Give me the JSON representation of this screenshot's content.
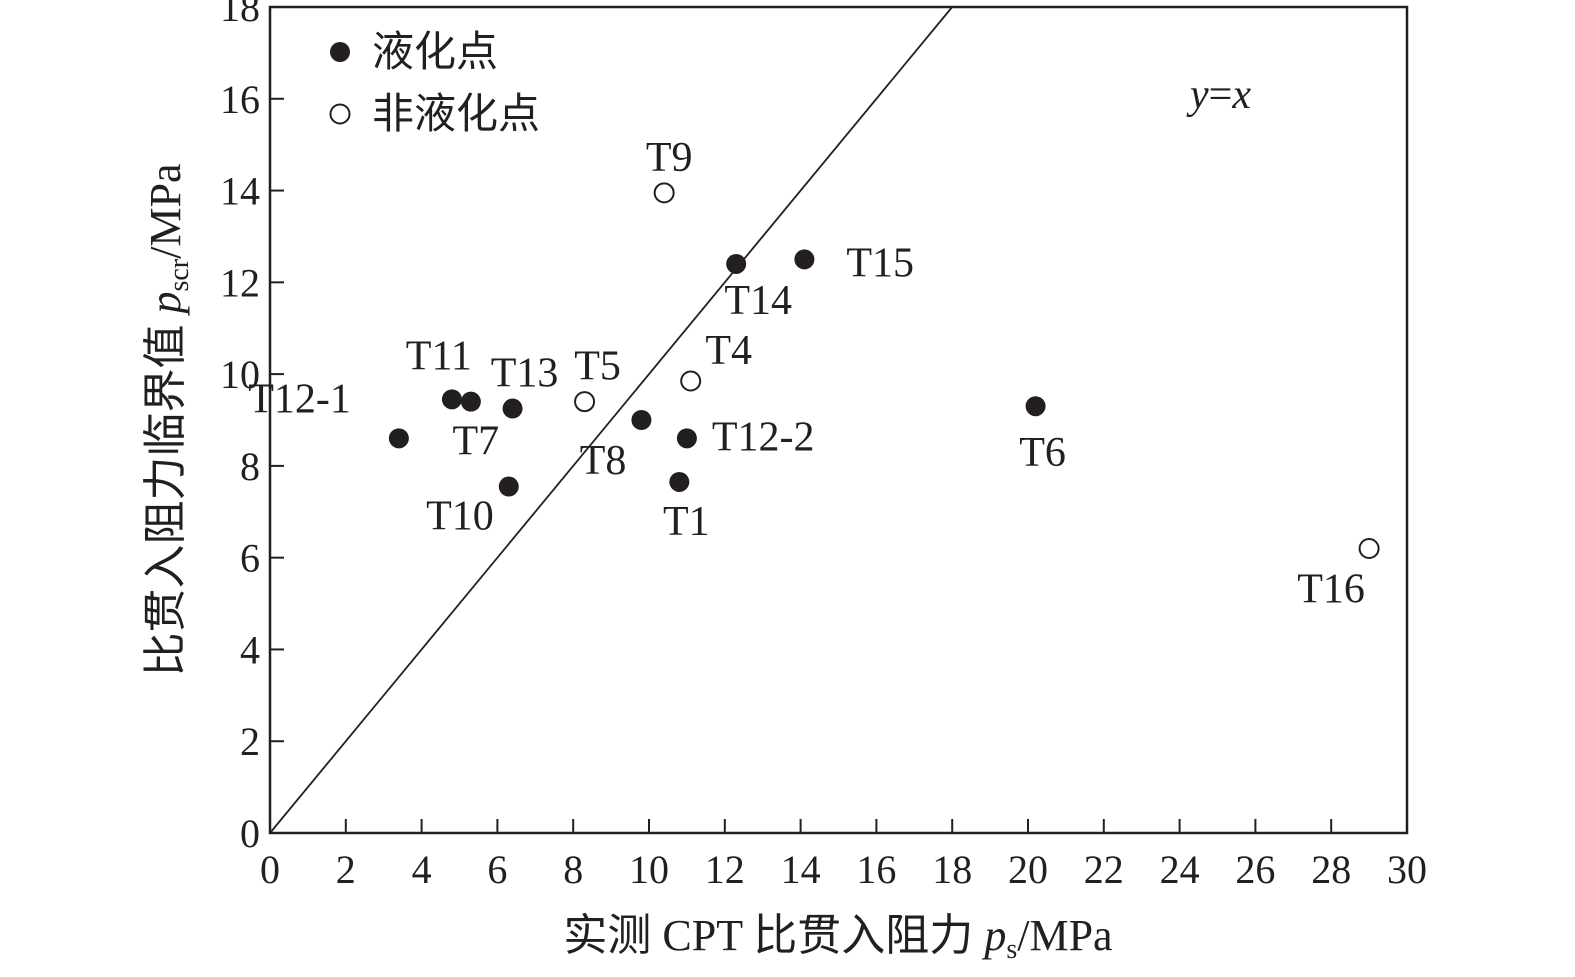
{
  "chart_data": {
    "type": "scatter",
    "xlabel": {
      "prefix": "实测 CPT 比贯入阻力 ",
      "var": "p",
      "sub": "s",
      "suffix": "/MPa"
    },
    "ylabel": {
      "prefix": "比贯入阻力临界值 ",
      "var": "p",
      "sub": "scr",
      "suffix": "/MPa"
    },
    "xlim": [
      0,
      30
    ],
    "ylim": [
      0,
      18
    ],
    "xticks": [
      "0",
      "2",
      "4",
      "6",
      "8",
      "10",
      "12",
      "14",
      "16",
      "18",
      "20",
      "22",
      "24",
      "26",
      "28",
      "30"
    ],
    "yticks": [
      "0",
      "2",
      "4",
      "6",
      "8",
      "10",
      "12",
      "14",
      "16",
      "18"
    ],
    "reference_line": {
      "label_y": "y",
      "label_eq": "=",
      "label_x": "x",
      "from": [
        0,
        0
      ],
      "to": [
        18,
        18
      ]
    },
    "legend": {
      "position": "top-left",
      "entries": [
        {
          "marker": "filled",
          "label": "液化点"
        },
        {
          "marker": "open",
          "label": "非液化点"
        }
      ]
    },
    "series": [
      {
        "name": "液化点",
        "marker": "filled",
        "points": [
          {
            "id": "T12-1",
            "x": 3.4,
            "y": 8.6
          },
          {
            "id": "T11",
            "x": 4.8,
            "y": 9.45
          },
          {
            "id": "T7",
            "x": 5.3,
            "y": 9.4
          },
          {
            "id": "T13",
            "x": 6.4,
            "y": 9.25
          },
          {
            "id": "T10",
            "x": 6.3,
            "y": 7.55
          },
          {
            "id": "T8",
            "x": 9.8,
            "y": 9.0
          },
          {
            "id": "T12-2",
            "x": 11.0,
            "y": 8.6
          },
          {
            "id": "T1",
            "x": 10.8,
            "y": 7.65
          },
          {
            "id": "T14",
            "x": 12.3,
            "y": 12.4
          },
          {
            "id": "T15",
            "x": 14.1,
            "y": 12.5
          },
          {
            "id": "T6",
            "x": 20.2,
            "y": 9.3
          }
        ]
      },
      {
        "name": "非液化点",
        "marker": "open",
        "points": [
          {
            "id": "T9",
            "x": 10.4,
            "y": 13.95
          },
          {
            "id": "T5",
            "x": 8.3,
            "y": 9.4
          },
          {
            "id": "T4",
            "x": 11.1,
            "y": 9.85
          },
          {
            "id": "T16",
            "x": 29.0,
            "y": 6.2
          }
        ]
      }
    ]
  }
}
